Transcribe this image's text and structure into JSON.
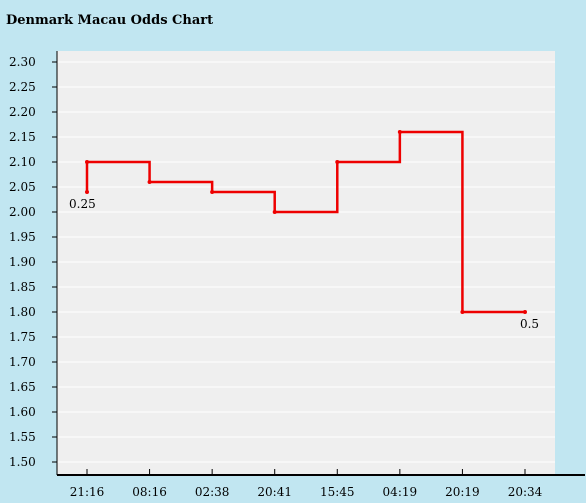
{
  "chart_data": {
    "type": "line",
    "step": true,
    "title": "Denmark Macau Odds Chart",
    "xlabel": "",
    "ylabel": "",
    "categories": [
      "21:16",
      "08:16",
      "02:38",
      "20:41",
      "15:45",
      "04:19",
      "20:19",
      "20:34"
    ],
    "y_ticks": [
      "2.30",
      "2.25",
      "2.20",
      "2.15",
      "2.10",
      "2.05",
      "2.00",
      "1.95",
      "1.90",
      "1.85",
      "1.80",
      "1.75",
      "1.70",
      "1.65",
      "1.60",
      "1.55",
      "1.50"
    ],
    "ylim": [
      1.5,
      2.3
    ],
    "grid": true,
    "points": [
      {
        "x": "21:16",
        "y": 2.04
      },
      {
        "x": "21:16",
        "y": 2.1
      },
      {
        "x": "08:16",
        "y": 2.06
      },
      {
        "x": "02:38",
        "y": 2.04
      },
      {
        "x": "20:41",
        "y": 2.0
      },
      {
        "x": "15:45",
        "y": 2.1
      },
      {
        "x": "04:19",
        "y": 2.16
      },
      {
        "x": "20:19",
        "y": 1.8
      },
      {
        "x": "20:34",
        "y": 1.8
      }
    ],
    "annotations": [
      {
        "x": "21:16",
        "y": 2.04,
        "text": "0.25"
      },
      {
        "x": "20:34",
        "y": 1.8,
        "text": "0.5"
      }
    ],
    "colors": {
      "line": "#ee0000",
      "plot_background": "#efefef",
      "page_background": "#c1e6f1",
      "grid": "#ffffff"
    }
  }
}
